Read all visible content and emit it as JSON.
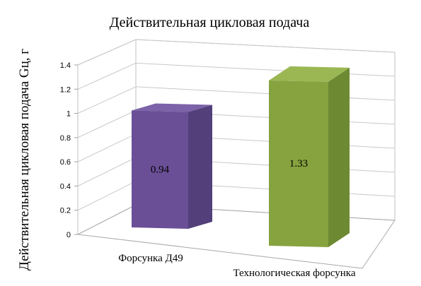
{
  "chart_data": {
    "type": "bar",
    "title": "Действительная цикловая подача",
    "ylabel": "Действительная цикловая подача Gц, г",
    "xlabel": "",
    "categories": [
      "Форсунка Д49",
      "Технологическая форсунка"
    ],
    "values": [
      0.94,
      1.33
    ],
    "data_labels": [
      "0.94",
      "1.33"
    ],
    "ylim": [
      0,
      1.4
    ],
    "yticks": [
      "0",
      "0.2",
      "0.4",
      "0.6",
      "0.8",
      "1",
      "1.2",
      "1.4"
    ],
    "grid": true,
    "legend": "none",
    "colors": [
      "#6a4f96",
      "#86a33f"
    ]
  }
}
